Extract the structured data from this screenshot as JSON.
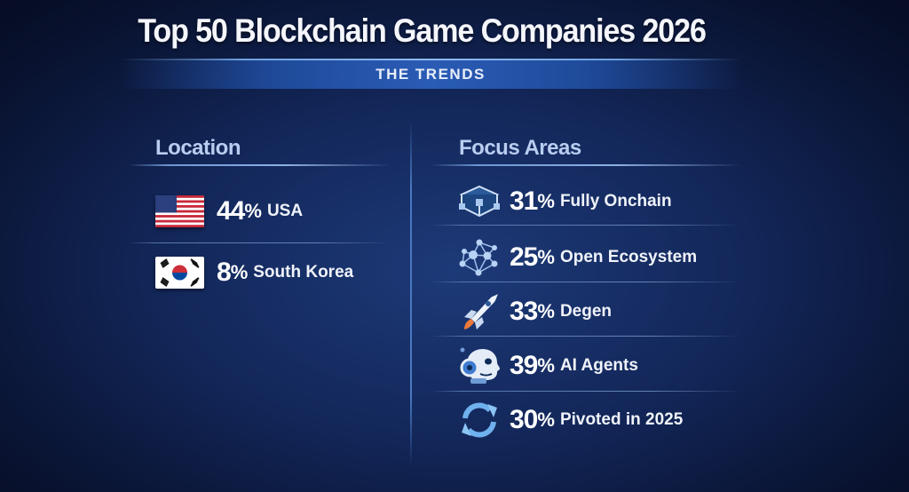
{
  "title": "Top 50 Blockchain Game Companies 2026",
  "subtitle": "THE TRENDS",
  "location": {
    "heading": "Location",
    "items": [
      {
        "value": "44",
        "unit": "%",
        "label": "USA",
        "icon": "us-flag-icon"
      },
      {
        "value": "8",
        "unit": "%",
        "label": "South Korea",
        "icon": "south-korea-flag-icon"
      }
    ]
  },
  "focus": {
    "heading": "Focus Areas",
    "items": [
      {
        "value": "31",
        "unit": "%",
        "label": "Fully Onchain",
        "icon": "cube-icon"
      },
      {
        "value": "25",
        "unit": "%",
        "label": "Open Ecosystem",
        "icon": "network-icon"
      },
      {
        "value": "33",
        "unit": "%",
        "label": "Degen",
        "icon": "rocket-icon"
      },
      {
        "value": "39",
        "unit": "%",
        "label": "AI Agents",
        "icon": "robot-head-icon"
      },
      {
        "value": "30",
        "unit": "%",
        "label": "Pivoted in 2025",
        "icon": "refresh-icon"
      }
    ]
  },
  "colors": {
    "background": "#13275a",
    "accent": "#2a5cb5",
    "heading": "#b9cdf0"
  }
}
